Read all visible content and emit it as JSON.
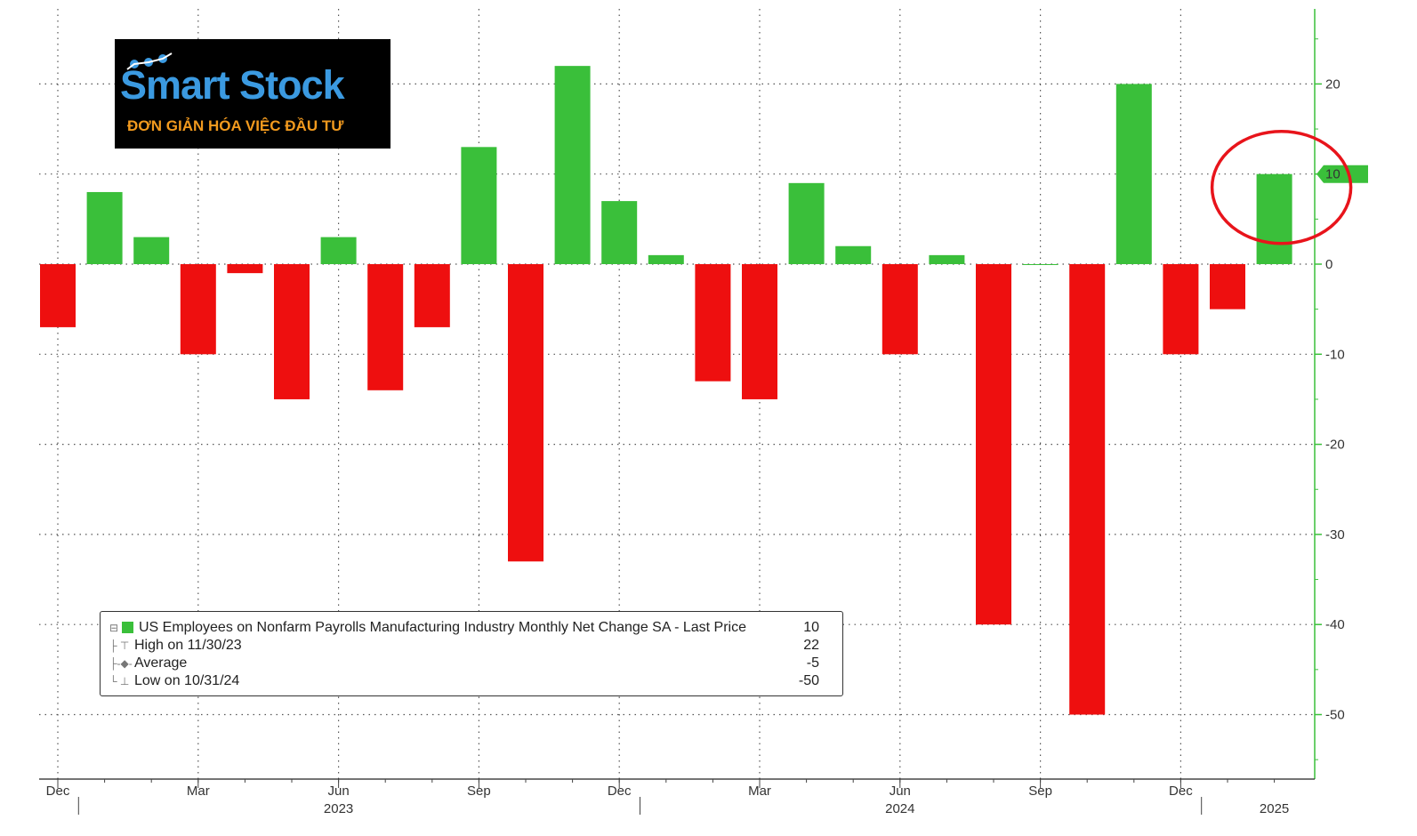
{
  "chart_data": {
    "type": "bar",
    "categories": [
      "Dec 2022",
      "Jan 2023",
      "Feb 2023",
      "Mar 2023",
      "Apr 2023",
      "May 2023",
      "Jun 2023",
      "Jul 2023",
      "Aug 2023",
      "Sep 2023",
      "Oct 2023",
      "Nov 2023",
      "Dec 2023",
      "Jan 2024",
      "Feb 2024",
      "Mar 2024",
      "Apr 2024",
      "May 2024",
      "Jun 2024",
      "Jul 2024",
      "Aug 2024",
      "Sep 2024",
      "Oct 2024",
      "Nov 2024",
      "Dec 2024",
      "Jan 2025",
      "Feb 2025"
    ],
    "values": [
      -7,
      8,
      3,
      -10,
      -1,
      -15,
      3,
      -14,
      -7,
      13,
      -33,
      22,
      7,
      1,
      -13,
      -15,
      9,
      2,
      -10,
      1,
      -40,
      0,
      -50,
      20,
      -10,
      -5,
      10
    ],
    "ylim": [
      -57,
      28
    ],
    "y_ticks": [
      20,
      10,
      0,
      -10,
      -20,
      -30,
      -40,
      -50
    ],
    "x_tick_labels": [
      {
        "index": 0,
        "label": "Dec"
      },
      {
        "index": 3,
        "label": "Mar"
      },
      {
        "index": 6,
        "label": "Jun"
      },
      {
        "index": 9,
        "label": "Sep"
      },
      {
        "index": 12,
        "label": "Dec"
      },
      {
        "index": 15,
        "label": "Mar"
      },
      {
        "index": 18,
        "label": "Jun"
      },
      {
        "index": 21,
        "label": "Sep"
      },
      {
        "index": 24,
        "label": "Dec"
      }
    ],
    "year_labels": [
      {
        "index": 6,
        "label": "2023"
      },
      {
        "index": 18,
        "label": "2024"
      },
      {
        "index": 26,
        "label": "2025"
      }
    ],
    "positive_color": "#3abf3a",
    "negative_color": "#ee0f0f",
    "axis_color": "#3abf3a",
    "last_value_label": "10",
    "highlight": "last bar circled in red",
    "highlight_color": "#e8141b",
    "grid": true,
    "legend": {
      "placement": "bottom-left",
      "rows": [
        {
          "label": "US Employees on Nonfarm Payrolls Manufacturing Industry Monthly Net Change SA - Last Price",
          "value": "10"
        },
        {
          "label": "High on 11/30/23",
          "value": "22"
        },
        {
          "label": "Average",
          "value": "-5"
        },
        {
          "label": "Low on 10/31/24",
          "value": "-50"
        }
      ]
    }
  },
  "logo": {
    "main": "Smart Stock",
    "tagline": "ĐƠN GIẢN HÓA VIỆC ĐẦU TƯ"
  }
}
